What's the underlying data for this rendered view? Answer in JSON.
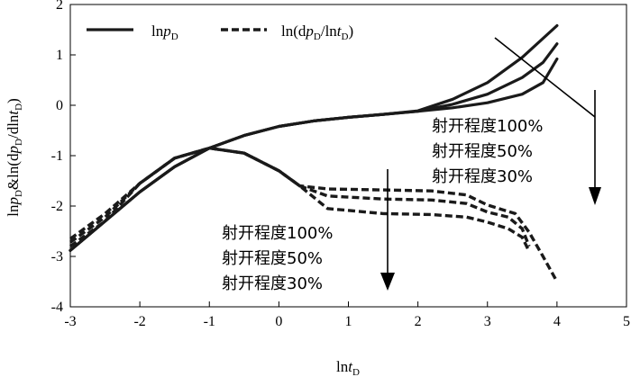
{
  "chart_data": {
    "type": "line",
    "xlabel": "lnt_D",
    "ylabel": "lnp_D&ln(dp_D/dlnt_D)",
    "xlim": [
      -3,
      5
    ],
    "ylim": [
      -4,
      2
    ],
    "x_ticks": [
      "-3",
      "-2",
      "-1",
      "0",
      "1",
      "2",
      "3",
      "4",
      "5"
    ],
    "y_ticks": [
      "-4",
      "-3",
      "-2",
      "-1",
      "0",
      "1",
      "2"
    ],
    "legend": [
      {
        "label": "lnp_D",
        "style": "solid"
      },
      {
        "label": "ln(dp_D/lnt_D)",
        "style": "dashed"
      }
    ],
    "annotations": {
      "pressure_group": [
        "射开程度100%",
        "射开程度50%",
        "射开程度30%"
      ],
      "derivative_group": [
        "射开程度100%",
        "射开程度50%",
        "射开程度30%"
      ]
    },
    "series": [
      {
        "group": "pressure",
        "style": "solid",
        "points": [
          [
            -3,
            -2.88
          ],
          [
            -2.5,
            -2.3
          ],
          [
            -2,
            -1.72
          ],
          [
            -1.5,
            -1.22
          ],
          [
            -1,
            -0.85
          ],
          [
            -0.5,
            -0.6
          ],
          [
            0,
            -0.42
          ],
          [
            0.5,
            -0.31
          ],
          [
            1,
            -0.24
          ],
          [
            1.5,
            -0.18
          ],
          [
            2,
            -0.11
          ],
          [
            2.5,
            0.12
          ],
          [
            3,
            0.45
          ],
          [
            3.5,
            0.95
          ],
          [
            4,
            1.58
          ]
        ]
      },
      {
        "group": "pressure",
        "style": "solid",
        "points": [
          [
            -3,
            -2.88
          ],
          [
            -2.5,
            -2.3
          ],
          [
            -2,
            -1.72
          ],
          [
            -1.5,
            -1.22
          ],
          [
            -1,
            -0.85
          ],
          [
            -0.5,
            -0.6
          ],
          [
            0,
            -0.42
          ],
          [
            0.5,
            -0.31
          ],
          [
            1,
            -0.24
          ],
          [
            1.5,
            -0.18
          ],
          [
            2,
            -0.12
          ],
          [
            2.5,
            0.02
          ],
          [
            3,
            0.22
          ],
          [
            3.5,
            0.55
          ],
          [
            3.8,
            0.85
          ],
          [
            4,
            1.22
          ]
        ]
      },
      {
        "group": "pressure",
        "style": "solid",
        "points": [
          [
            -3,
            -2.88
          ],
          [
            -2.5,
            -2.3
          ],
          [
            -2,
            -1.72
          ],
          [
            -1.5,
            -1.22
          ],
          [
            -1,
            -0.85
          ],
          [
            -0.5,
            -0.6
          ],
          [
            0,
            -0.42
          ],
          [
            0.5,
            -0.31
          ],
          [
            1,
            -0.24
          ],
          [
            1.5,
            -0.18
          ],
          [
            2,
            -0.12
          ],
          [
            2.5,
            -0.05
          ],
          [
            3,
            0.05
          ],
          [
            3.5,
            0.22
          ],
          [
            3.8,
            0.45
          ],
          [
            4,
            0.92
          ]
        ]
      },
      {
        "group": "derivative",
        "style": "dashed",
        "points": [
          [
            -3,
            -2.8
          ],
          [
            -2.5,
            -2.3
          ],
          [
            -2,
            -1.55
          ],
          [
            -1.5,
            -1.05
          ],
          [
            -1,
            -0.85
          ],
          [
            -0.5,
            -0.95
          ],
          [
            0,
            -1.3
          ],
          [
            0.3,
            -1.6
          ],
          [
            0.7,
            -1.66
          ],
          [
            1.5,
            -1.68
          ],
          [
            2.2,
            -1.7
          ],
          [
            2.7,
            -1.78
          ],
          [
            3,
            -1.98
          ],
          [
            3.4,
            -2.15
          ],
          [
            3.6,
            -2.52
          ],
          [
            3.8,
            -3.0
          ],
          [
            4.0,
            -3.5
          ]
        ]
      },
      {
        "group": "derivative",
        "style": "dashed",
        "points": [
          [
            -3,
            -2.72
          ],
          [
            -2.5,
            -2.22
          ],
          [
            -2,
            -1.55
          ],
          [
            -1.5,
            -1.05
          ],
          [
            -1,
            -0.85
          ],
          [
            -0.5,
            -0.95
          ],
          [
            0,
            -1.3
          ],
          [
            0.3,
            -1.6
          ],
          [
            0.7,
            -1.8
          ],
          [
            1.5,
            -1.86
          ],
          [
            2.2,
            -1.88
          ],
          [
            2.7,
            -1.95
          ],
          [
            3,
            -2.12
          ],
          [
            3.3,
            -2.22
          ],
          [
            3.5,
            -2.45
          ],
          [
            3.6,
            -2.8
          ]
        ]
      },
      {
        "group": "derivative",
        "style": "dashed",
        "points": [
          [
            -3,
            -2.65
          ],
          [
            -2.5,
            -2.15
          ],
          [
            -2,
            -1.55
          ],
          [
            -1.5,
            -1.05
          ],
          [
            -1,
            -0.85
          ],
          [
            -0.5,
            -0.95
          ],
          [
            0,
            -1.3
          ],
          [
            0.3,
            -1.6
          ],
          [
            0.7,
            -2.05
          ],
          [
            1.5,
            -2.15
          ],
          [
            2.2,
            -2.17
          ],
          [
            2.7,
            -2.22
          ],
          [
            3,
            -2.32
          ],
          [
            3.3,
            -2.45
          ],
          [
            3.5,
            -2.62
          ],
          [
            3.6,
            -2.9
          ]
        ]
      }
    ]
  }
}
